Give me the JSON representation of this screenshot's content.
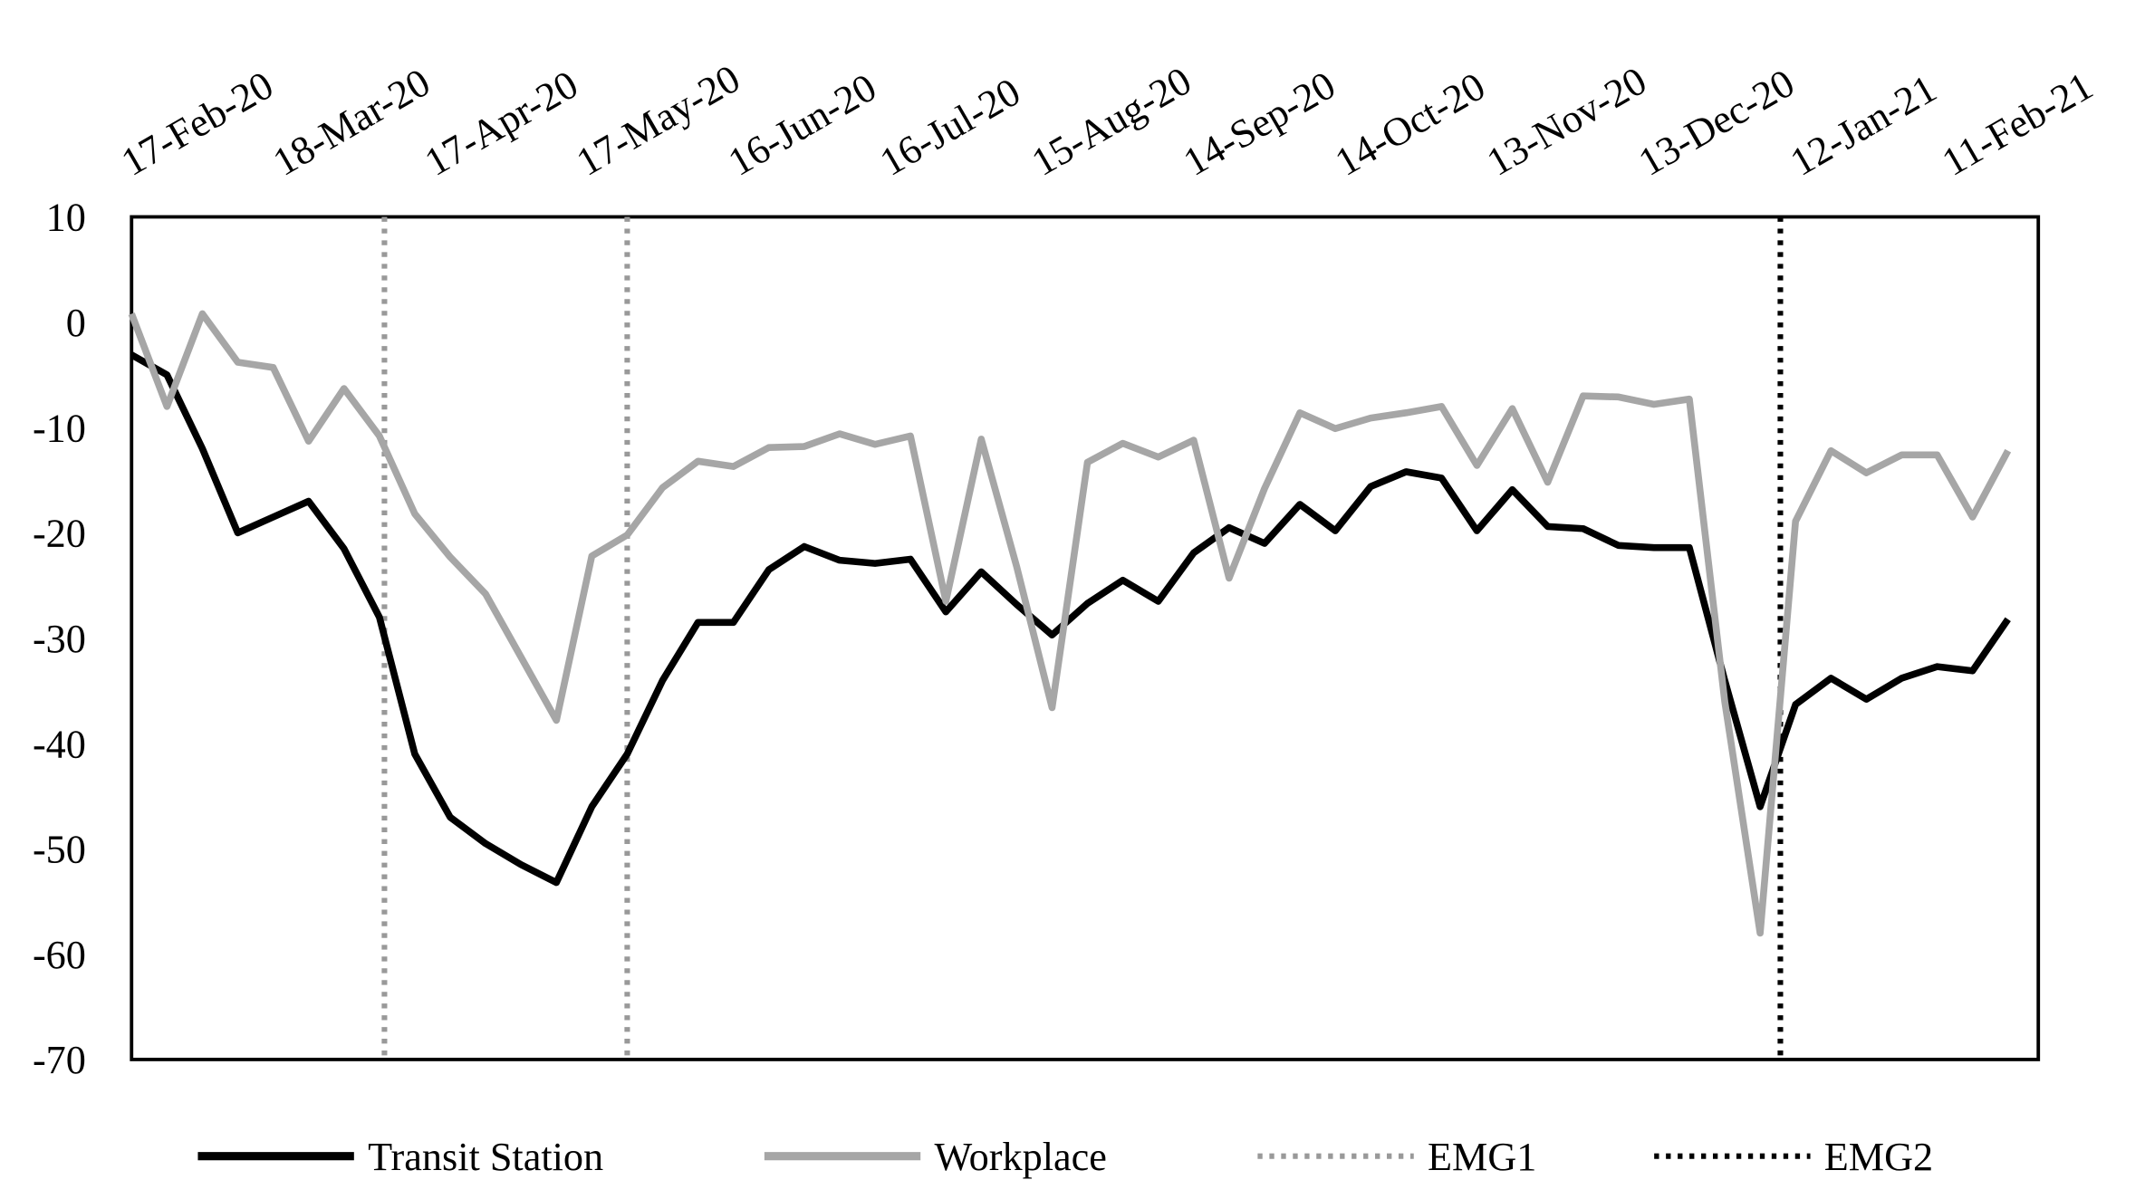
{
  "chart_data": {
    "type": "line",
    "x": [
      "2020-02-17",
      "2020-02-24",
      "2020-03-02",
      "2020-03-09",
      "2020-03-16",
      "2020-03-23",
      "2020-03-30",
      "2020-04-06",
      "2020-04-13",
      "2020-04-20",
      "2020-04-27",
      "2020-05-04",
      "2020-05-11",
      "2020-05-18",
      "2020-05-25",
      "2020-06-01",
      "2020-06-08",
      "2020-06-15",
      "2020-06-22",
      "2020-06-29",
      "2020-07-06",
      "2020-07-13",
      "2020-07-20",
      "2020-07-27",
      "2020-08-03",
      "2020-08-10",
      "2020-08-17",
      "2020-08-24",
      "2020-08-31",
      "2020-09-07",
      "2020-09-14",
      "2020-09-21",
      "2020-09-28",
      "2020-10-05",
      "2020-10-12",
      "2020-10-19",
      "2020-10-26",
      "2020-11-02",
      "2020-11-09",
      "2020-11-16",
      "2020-11-23",
      "2020-11-30",
      "2020-12-07",
      "2020-12-14",
      "2020-12-21",
      "2020-12-28",
      "2021-01-04",
      "2021-01-11",
      "2021-01-18",
      "2021-01-25",
      "2021-02-01",
      "2021-02-08",
      "2021-02-15",
      "2021-02-22"
    ],
    "series": [
      {
        "name": "Transit Station",
        "color": "#000000",
        "values": [
          -3.1,
          -5,
          -12,
          -20,
          -18.5,
          -17,
          -21.5,
          -28,
          -41,
          -47,
          -49.5,
          -51.5,
          -53.2,
          -46,
          -41,
          -34,
          -28.5,
          -28.5,
          -23.5,
          -21.3,
          -22.6,
          -22.9,
          -22.5,
          -27.5,
          -23.7,
          -26.8,
          -29.7,
          -26.7,
          -24.5,
          -26.5,
          -21.9,
          -19.5,
          -21,
          -17.3,
          -19.8,
          -15.6,
          -14.2,
          -14.8,
          -19.8,
          -15.9,
          -19.4,
          -19.6,
          -21.2,
          -21.4,
          -21.4,
          -34,
          -46,
          -36.3,
          -33.8,
          -35.8,
          -33.8,
          -32.7,
          -33.1,
          -28.2
        ]
      },
      {
        "name": "Workplace",
        "color": "#a6a6a6",
        "values": [
          0.8,
          -8,
          0.8,
          -3.8,
          -4.3,
          -11.3,
          -6.3,
          -10.8,
          -18.2,
          -22.3,
          -25.8,
          -31.8,
          -37.8,
          -22.2,
          -20.2,
          -15.7,
          -13.2,
          -13.7,
          -11.9,
          -11.8,
          -10.6,
          -11.6,
          -10.8,
          -26.5,
          -11.1,
          -23.2,
          -36.6,
          -13.3,
          -11.5,
          -12.8,
          -11.2,
          -24.3,
          -15.8,
          -8.6,
          -10.1,
          -9.1,
          -8.6,
          -8,
          -13.6,
          -8.2,
          -15.2,
          -7,
          -7.1,
          -7.8,
          -7.3,
          -36,
          -58,
          -18.9,
          -12.2,
          -14.3,
          -12.6,
          -12.6,
          -18.5,
          -12.2
        ]
      }
    ],
    "markers": [
      {
        "name": "EMG1",
        "color": "#999999",
        "dates": [
          "2020-04-07",
          "2020-05-25"
        ]
      },
      {
        "name": "EMG2",
        "color": "#000000",
        "dates": [
          "2021-01-08"
        ]
      }
    ],
    "xlim": [
      "2020-02-17",
      "2021-02-28"
    ],
    "xticks": [
      {
        "value": "2020-02-17",
        "label": "17-Feb-20"
      },
      {
        "value": "2020-03-18",
        "label": "18-Mar-20"
      },
      {
        "value": "2020-04-17",
        "label": "17-Apr-20"
      },
      {
        "value": "2020-05-17",
        "label": "17-May-20"
      },
      {
        "value": "2020-06-16",
        "label": "16-Jun-20"
      },
      {
        "value": "2020-07-16",
        "label": "16-Jul-20"
      },
      {
        "value": "2020-08-15",
        "label": "15-Aug-20"
      },
      {
        "value": "2020-09-14",
        "label": "14-Sep-20"
      },
      {
        "value": "2020-10-14",
        "label": "14-Oct-20"
      },
      {
        "value": "2020-11-13",
        "label": "13-Nov-20"
      },
      {
        "value": "2020-12-13",
        "label": "13-Dec-20"
      },
      {
        "value": "2021-01-12",
        "label": "12-Jan-21"
      },
      {
        "value": "2021-02-11",
        "label": "11-Feb-21"
      }
    ],
    "ylim": [
      -70,
      10
    ],
    "yticks": [
      10,
      0,
      -10,
      -20,
      -30,
      -40,
      -50,
      -60,
      -70
    ],
    "legend": "bottom"
  }
}
